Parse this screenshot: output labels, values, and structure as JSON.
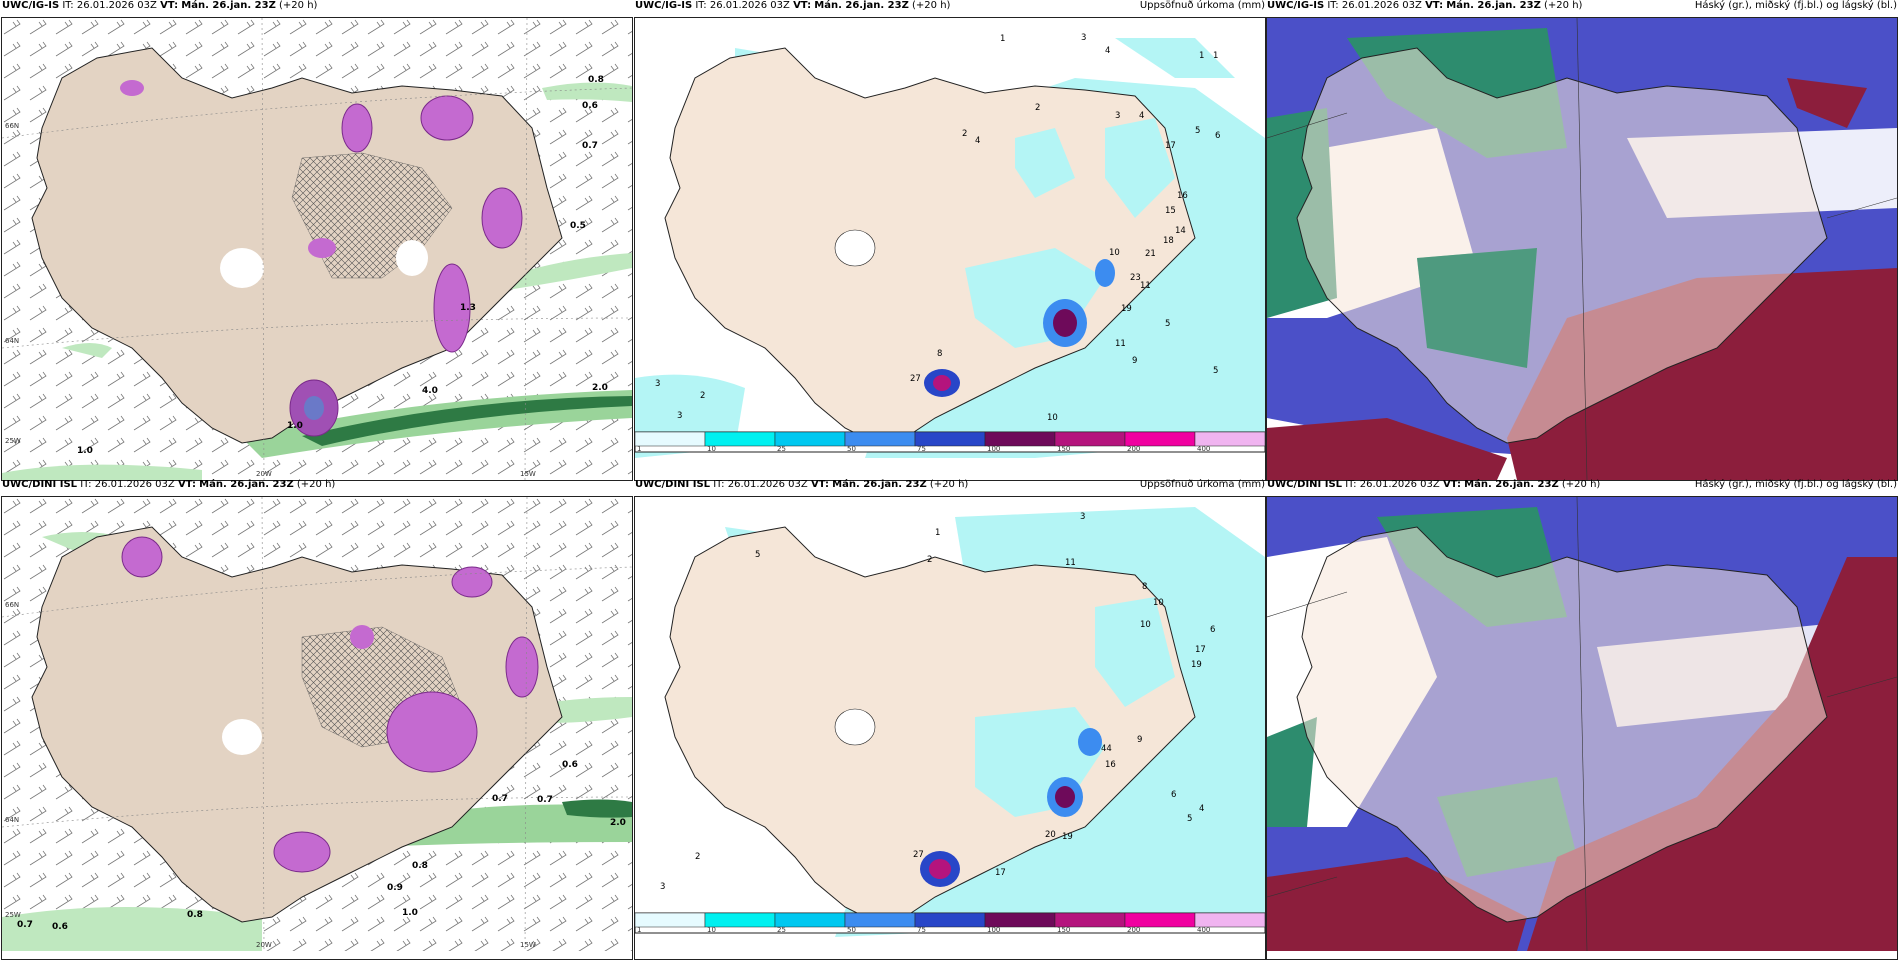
{
  "rows": [
    {
      "model": "UWC/IG-IS",
      "it_label": "IT:",
      "it_value": "26.01.2026 03Z",
      "vt_label": "VT:",
      "vt_value": "Mán. 26.jan. 23Z",
      "lead": "(+20 h)"
    },
    {
      "model": "UWC/DINI ISL",
      "it_label": "IT:",
      "it_value": "26.01.2026 03Z",
      "vt_label": "VT:",
      "vt_value": "Mán. 26.jan. 23Z",
      "lead": "(+20 h)"
    }
  ],
  "precip_title": "Uppsöfnuð úrkoma (mm)",
  "cloud_title": "Háský (gr.), miðský (fj.bl.) og lágský (bl.)",
  "axis": {
    "lon_labels": [
      "20W",
      "15W"
    ],
    "lat_labels": [
      "66N",
      "64N",
      "25W"
    ]
  },
  "colorbar": {
    "ticks": [
      "1",
      "10",
      "25",
      "50",
      "75",
      "100",
      "150",
      "200",
      "400"
    ],
    "colors": [
      "#e6fbff",
      "#00f0f0",
      "#00c8f0",
      "#3c8cf0",
      "#2846c8",
      "#6e0a5a",
      "#b4147d",
      "#f000a0",
      "#f0b4f0"
    ]
  },
  "colors": {
    "land": "#f5e6d8",
    "land_left": "#e3d3c3",
    "precip_light": "#b4f5f5",
    "high_cloud": "#2d8c6e",
    "mid_cloud": "#4b50c8",
    "low_cloud": "#8c1e3c",
    "ocean": "#ffffff"
  },
  "top_left_labels": [
    "0.8",
    "1.0",
    "0.6",
    "0.7",
    "0.5",
    "1.0",
    "1.3",
    "4.0",
    "2.0"
  ],
  "top_mid_labels": [
    "1",
    "3",
    "4",
    "1",
    "1",
    "2",
    "4",
    "2",
    "3",
    "4",
    "5",
    "6",
    "16",
    "17",
    "15",
    "14",
    "18",
    "21",
    "23",
    "11",
    "10",
    "5",
    "9",
    "10",
    "11",
    "19",
    "27",
    "8",
    "3",
    "2",
    "3",
    "5"
  ],
  "bot_left_labels": [
    "0.6",
    "0.7",
    "0.8",
    "0.9",
    "1.0",
    "0.7",
    "2.0",
    "0.6",
    "0.8",
    "0.7"
  ],
  "bot_mid_labels": [
    "1",
    "2",
    "3",
    "5",
    "11",
    "17",
    "10",
    "20",
    "19",
    "27",
    "16",
    "44",
    "9",
    "8",
    "10",
    "6",
    "4",
    "5",
    "6",
    "17",
    "19",
    "2",
    "3"
  ]
}
